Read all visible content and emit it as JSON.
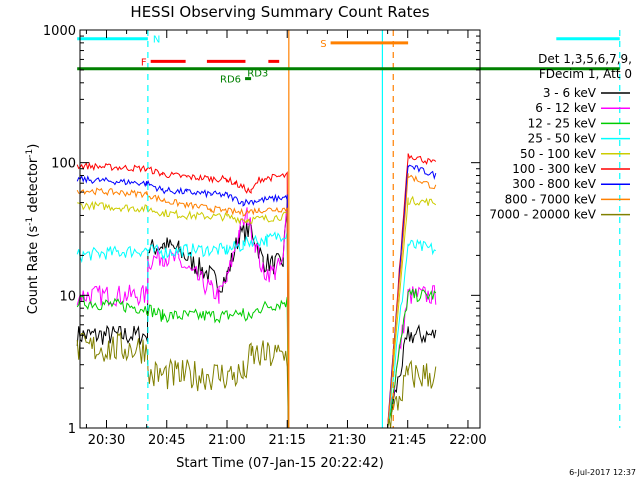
{
  "chart_data": {
    "type": "line",
    "title": "HESSI Observing Summary Count Rates",
    "xlabel": "Start Time (07-Jan-15 20:22:42)",
    "ylabel_main": "Count Rate (s",
    "ylabel_sup1": "-1",
    "ylabel_mid": " detector",
    "ylabel_sup2": "-1",
    "ylabel_end": ")",
    "yscale": "log",
    "ylim": [
      1,
      1000
    ],
    "xlim_min": [
      20,
      23.4
    ],
    "xlim_max": [
      22,
      3
    ],
    "x_ticks": [
      {
        "label": "20:30",
        "min": 1230
      },
      {
        "label": "20:45",
        "min": 1245
      },
      {
        "label": "21:00",
        "min": 1260
      },
      {
        "label": "21:15",
        "min": 1275
      },
      {
        "label": "21:30",
        "min": 1290
      },
      {
        "label": "21:45",
        "min": 1305
      },
      {
        "label": "22:00",
        "min": 1320
      }
    ],
    "y_ticks": [
      {
        "label": "1",
        "value": 1
      },
      {
        "label": "10",
        "value": 10
      },
      {
        "label": "100",
        "value": 100
      },
      {
        "label": "1000",
        "value": 1000
      }
    ],
    "legend_header": [
      "Det 1,3,5,6,7,9,",
      "FDecim 1, Att 0"
    ],
    "legend": [
      {
        "label": "3 - 6 keV",
        "color": "#000000"
      },
      {
        "label": "6 - 12 keV",
        "color": "#ff00ff"
      },
      {
        "label": "12 - 25 keV",
        "color": "#00cc00"
      },
      {
        "label": "25 - 50 keV",
        "color": "#00ffff"
      },
      {
        "label": "50 - 100 keV",
        "color": "#cccc00"
      },
      {
        "label": "100 - 300 keV",
        "color": "#ff0000"
      },
      {
        "label": "300 - 800 keV",
        "color": "#0000ff"
      },
      {
        "label": "800 - 7000 keV",
        "color": "#ff8000"
      },
      {
        "label": "7000 - 20000 keV",
        "color": "#808000"
      }
    ],
    "timestamp": "6-Jul-2017 12:37",
    "flag_bars": [
      {
        "label": "N",
        "color": "#00ffff",
        "level": 860,
        "segments": [
          [
            1222.7,
            1240.3
          ],
          [
            1342.0,
            1357.8
          ]
        ]
      },
      {
        "label": "S",
        "color": "#ff8000",
        "level": 800,
        "segments": [
          [
            1285.8,
            1305.1
          ]
        ]
      },
      {
        "label": "F",
        "color": "#ff0000",
        "level": 580,
        "segments": [
          [
            1241.0,
            1249.7
          ],
          [
            1255.0,
            1264.6
          ],
          [
            1270.3,
            1273.0
          ]
        ]
      },
      {
        "label": "RD6",
        "color": "#008000",
        "level": 430,
        "segments": [
          [
            1264.5,
            1266.0
          ]
        ]
      },
      {
        "label": "RD3",
        "color": "#008000",
        "level": 480,
        "segments": []
      },
      {
        "label": "",
        "color": "#008000",
        "level": 510,
        "segments": [
          [
            1222.7,
            1357.8
          ]
        ]
      }
    ],
    "vlines": [
      {
        "color": "#00ffff",
        "style": "dashed",
        "x": 1240.3
      },
      {
        "color": "#00ffff",
        "style": "solid",
        "x": 1298.7
      },
      {
        "color": "#ff8000",
        "style": "solid",
        "x": 1275.4
      },
      {
        "color": "#ff8000",
        "style": "dashed",
        "x": 1301.4
      },
      {
        "color": "#00ffff",
        "style": "dashed",
        "x": 1357.8
      }
    ],
    "series": [
      {
        "name": "3 - 6 keV",
        "color": "#000000",
        "noise": 0.08,
        "points": [
          [
            1222.7,
            5
          ],
          [
            1240.2,
            5
          ],
          [
            1240.3,
            22
          ],
          [
            1244,
            24
          ],
          [
            1248,
            22
          ],
          [
            1252,
            17
          ],
          [
            1256,
            14
          ],
          [
            1258,
            12
          ],
          [
            1260,
            14
          ],
          [
            1263,
            28
          ],
          [
            1266,
            32
          ],
          [
            1269,
            18
          ],
          [
            1272,
            17
          ],
          [
            1274,
            18
          ],
          [
            1275,
            55
          ],
          [
            1275.3,
            1
          ],
          [
            1285.9,
            1
          ],
          [
            1300,
            1
          ],
          [
            1305.1,
            5
          ],
          [
            1312,
            5
          ]
        ]
      },
      {
        "name": "6 - 12 keV",
        "color": "#ff00ff",
        "noise": 0.08,
        "points": [
          [
            1222.7,
            10
          ],
          [
            1240.2,
            10
          ],
          [
            1240.3,
            18
          ],
          [
            1244,
            20
          ],
          [
            1248,
            18
          ],
          [
            1252,
            14
          ],
          [
            1256,
            11
          ],
          [
            1258,
            10
          ],
          [
            1260,
            13
          ],
          [
            1263,
            30
          ],
          [
            1265,
            40
          ],
          [
            1267,
            25
          ],
          [
            1269,
            15
          ],
          [
            1272,
            15
          ],
          [
            1274,
            18
          ],
          [
            1275,
            55
          ],
          [
            1275.3,
            1
          ],
          [
            1300,
            1
          ],
          [
            1305.1,
            10
          ],
          [
            1312,
            10
          ]
        ]
      },
      {
        "name": "12 - 25 keV",
        "color": "#00cc00",
        "noise": 0.05,
        "points": [
          [
            1222.7,
            9
          ],
          [
            1240,
            8
          ],
          [
            1244,
            7
          ],
          [
            1260,
            7
          ],
          [
            1264,
            7.5
          ],
          [
            1265,
            6.5
          ],
          [
            1268,
            8
          ],
          [
            1275,
            9
          ],
          [
            1275.3,
            1
          ],
          [
            1300,
            1
          ],
          [
            1305.1,
            10
          ],
          [
            1312,
            10
          ]
        ]
      },
      {
        "name": "25 - 50 keV",
        "color": "#00ffff",
        "noise": 0.05,
        "points": [
          [
            1222.7,
            20
          ],
          [
            1240,
            22
          ],
          [
            1244,
            21
          ],
          [
            1250,
            22
          ],
          [
            1260,
            22
          ],
          [
            1264,
            24
          ],
          [
            1266,
            26
          ],
          [
            1270,
            26
          ],
          [
            1275,
            30
          ],
          [
            1275.3,
            1
          ],
          [
            1300,
            1
          ],
          [
            1305.1,
            24
          ],
          [
            1312,
            22
          ]
        ]
      },
      {
        "name": "50 - 100 keV",
        "color": "#cccc00",
        "noise": 0.03,
        "points": [
          [
            1222.7,
            48
          ],
          [
            1240,
            45
          ],
          [
            1244,
            42
          ],
          [
            1250,
            40
          ],
          [
            1260,
            39
          ],
          [
            1265,
            37
          ],
          [
            1270,
            38
          ],
          [
            1275,
            40
          ],
          [
            1275.3,
            1
          ],
          [
            1300,
            1
          ],
          [
            1305.1,
            52
          ],
          [
            1312,
            50
          ]
        ]
      },
      {
        "name": "100 - 300 keV",
        "color": "#ff0000",
        "noise": 0.025,
        "points": [
          [
            1222.7,
            95
          ],
          [
            1240,
            90
          ],
          [
            1244,
            82
          ],
          [
            1250,
            78
          ],
          [
            1256,
            76
          ],
          [
            1260,
            75
          ],
          [
            1262,
            70
          ],
          [
            1266,
            60
          ],
          [
            1268,
            75
          ],
          [
            1275,
            80
          ],
          [
            1275.3,
            1
          ],
          [
            1300,
            1
          ],
          [
            1305.1,
            115
          ],
          [
            1312,
            98
          ]
        ]
      },
      {
        "name": "300 - 800 keV",
        "color": "#0000ff",
        "noise": 0.025,
        "points": [
          [
            1222.7,
            75
          ],
          [
            1240,
            70
          ],
          [
            1244,
            62
          ],
          [
            1250,
            60
          ],
          [
            1256,
            58
          ],
          [
            1260,
            57
          ],
          [
            1264,
            50
          ],
          [
            1268,
            52
          ],
          [
            1275,
            55
          ],
          [
            1275.3,
            1
          ],
          [
            1300,
            1
          ],
          [
            1305.1,
            95
          ],
          [
            1312,
            80
          ]
        ]
      },
      {
        "name": "800 - 7000 keV",
        "color": "#ff8000",
        "noise": 0.025,
        "points": [
          [
            1222.7,
            62
          ],
          [
            1240,
            58
          ],
          [
            1244,
            52
          ],
          [
            1250,
            48
          ],
          [
            1256,
            45
          ],
          [
            1260,
            43
          ],
          [
            1264,
            42
          ],
          [
            1268,
            44
          ],
          [
            1275,
            45
          ],
          [
            1275.3,
            1
          ],
          [
            1300,
            1
          ],
          [
            1305.1,
            80
          ],
          [
            1312,
            65
          ]
        ]
      },
      {
        "name": "7000 - 20000 keV",
        "color": "#808000",
        "noise": 0.12,
        "points": [
          [
            1222.7,
            4
          ],
          [
            1240.2,
            4
          ],
          [
            1240.3,
            2.5
          ],
          [
            1264,
            2.5
          ],
          [
            1266,
            3.5
          ],
          [
            1275,
            3.5
          ],
          [
            1275.3,
            1
          ],
          [
            1300,
            1
          ],
          [
            1305.1,
            2.5
          ],
          [
            1312,
            2.5
          ]
        ]
      }
    ]
  }
}
